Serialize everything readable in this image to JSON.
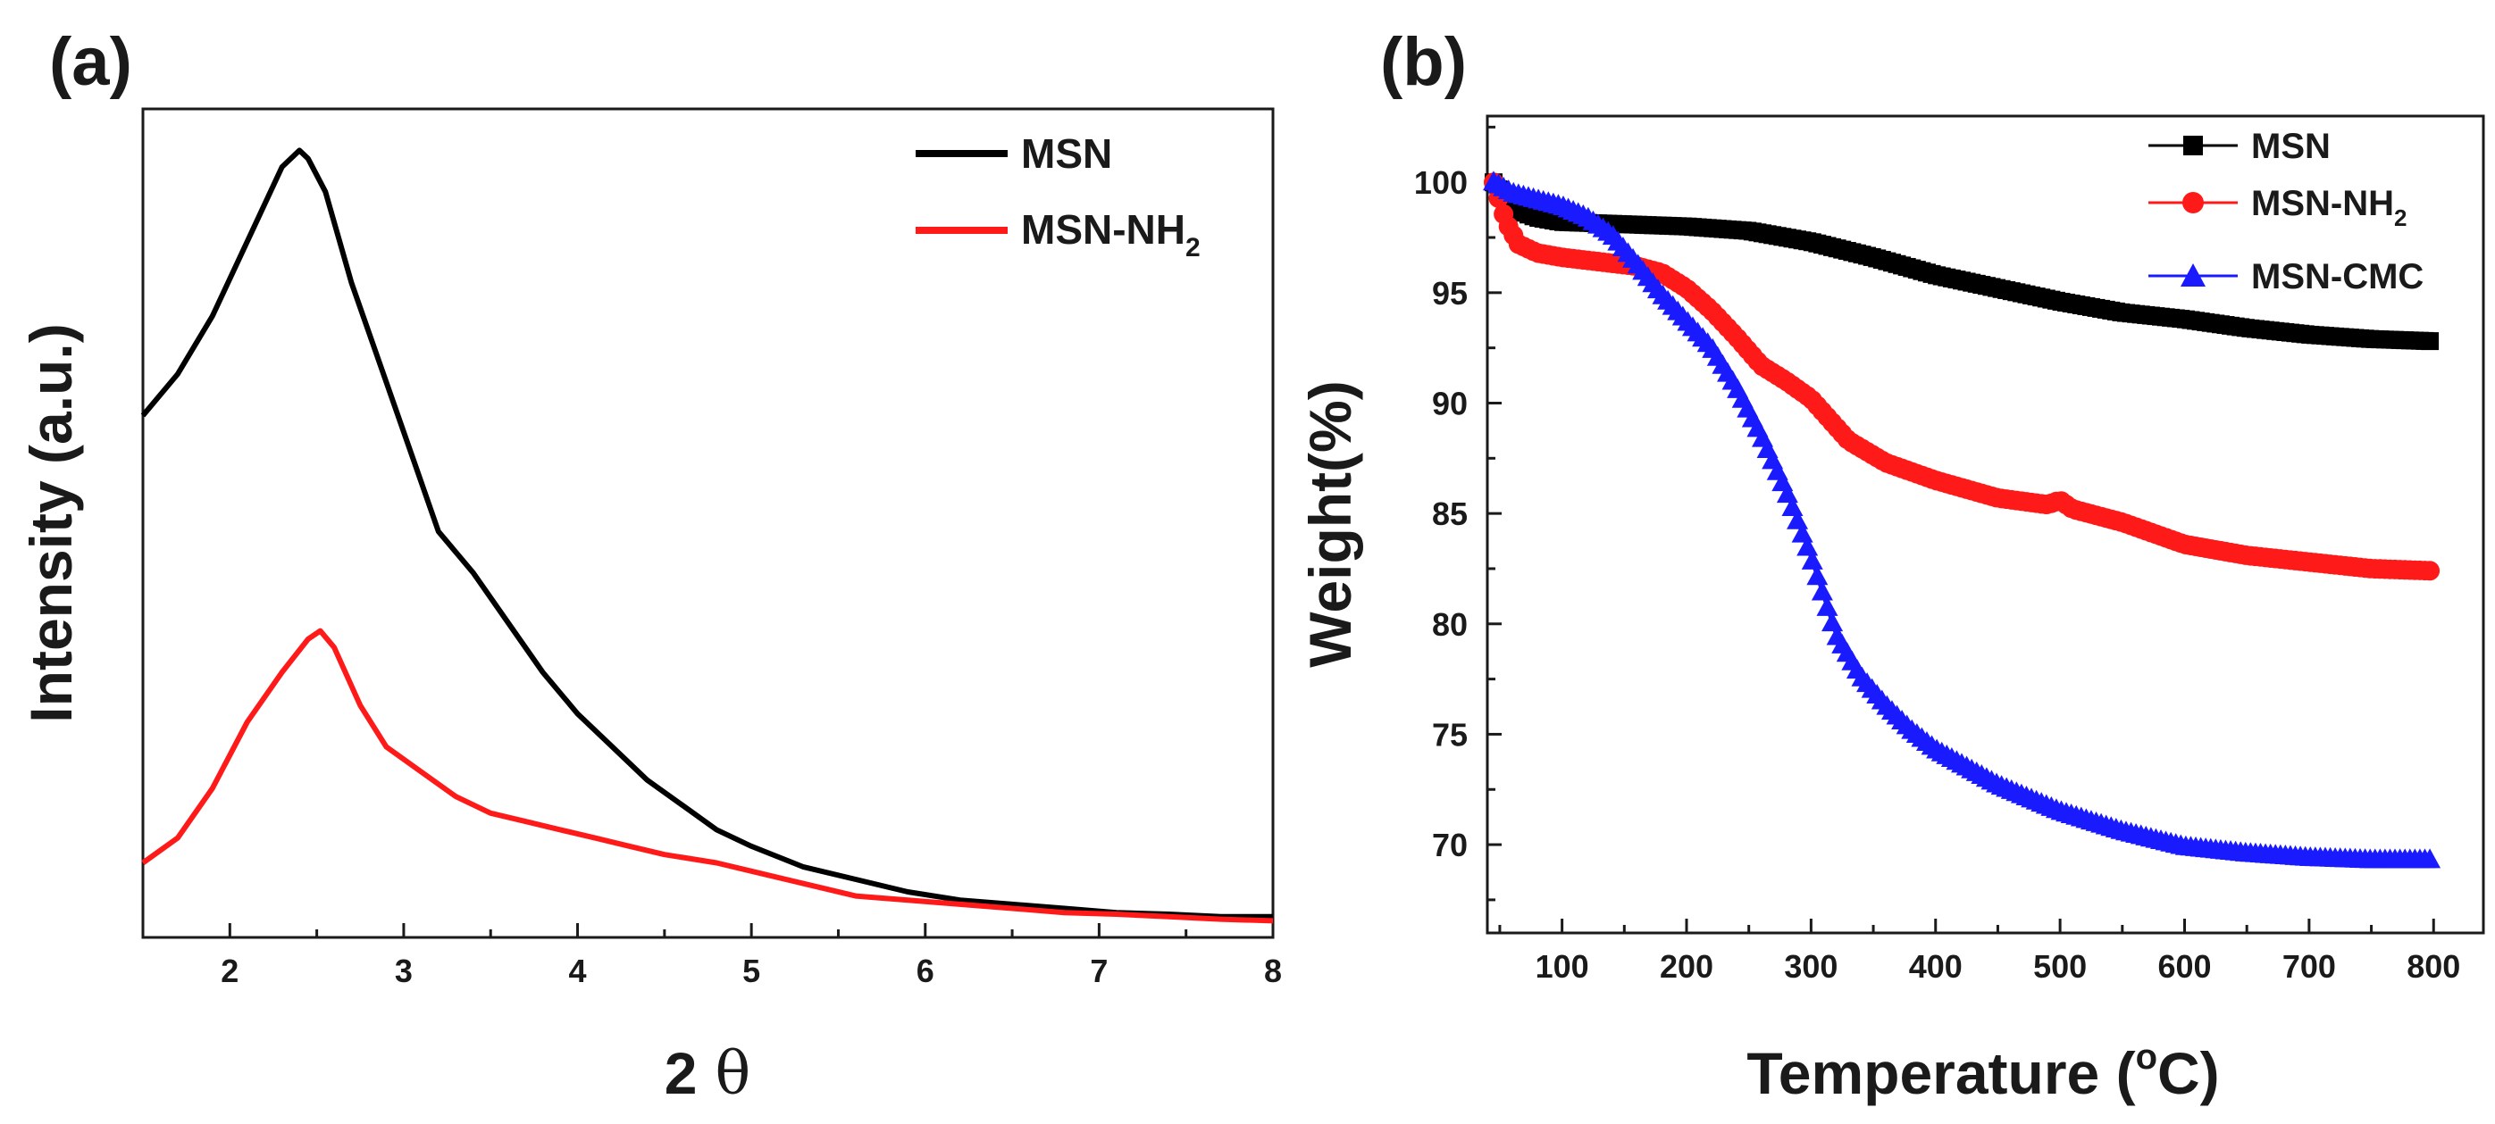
{
  "chart_data": [
    {
      "panel": "(a)",
      "type": "line",
      "xlabel": "2",
      "xlabel_symbol": "θ",
      "ylabel": "Intensity (a.u.)",
      "xlim": [
        1.5,
        8
      ],
      "ylim": [
        0,
        100
      ],
      "xticks": [
        "2",
        "3",
        "4",
        "5",
        "6",
        "7",
        "8"
      ],
      "legend_position": "top-right",
      "series": [
        {
          "name": "MSN",
          "name_sub": "",
          "color": "#000000",
          "x": [
            1.5,
            1.7,
            1.9,
            2.1,
            2.3,
            2.4,
            2.45,
            2.55,
            2.7,
            2.9,
            3.1,
            3.2,
            3.4,
            3.6,
            3.8,
            4.0,
            4.2,
            4.4,
            4.6,
            4.8,
            5.0,
            5.3,
            5.6,
            5.9,
            6.2,
            6.5,
            6.8,
            7.1,
            7.4,
            7.7,
            8.0
          ],
          "y": [
            63,
            68,
            75,
            84,
            93,
            95,
            94,
            90,
            79,
            67,
            55,
            49,
            44,
            38,
            32,
            27,
            23,
            19,
            16,
            13,
            11,
            8.5,
            7,
            5.5,
            4.5,
            4,
            3.5,
            3,
            2.8,
            2.5,
            2.5
          ]
        },
        {
          "name": "MSN-NH",
          "name_sub": "2",
          "color": "#ff1a1a",
          "x": [
            1.5,
            1.7,
            1.9,
            2.1,
            2.3,
            2.45,
            2.52,
            2.6,
            2.75,
            2.9,
            3.1,
            3.3,
            3.5,
            3.7,
            3.9,
            4.1,
            4.3,
            4.5,
            4.8,
            5.0,
            5.3,
            5.6,
            5.9,
            6.2,
            6.5,
            6.8,
            7.1,
            7.4,
            7.7,
            8.0
          ],
          "y": [
            9,
            12,
            18,
            26,
            32,
            36,
            37,
            35,
            28,
            23,
            20,
            17,
            15,
            14,
            13,
            12,
            11,
            10,
            9,
            8,
            6.5,
            5,
            4.5,
            4,
            3.5,
            3,
            2.8,
            2.5,
            2.2,
            2
          ]
        }
      ]
    },
    {
      "panel": "(b)",
      "type": "line",
      "xlabel": "Temperature (",
      "xlabel_unit_sup": "o",
      "xlabel_unit": "C)",
      "ylabel": "Weight(%)",
      "xlim": [
        40,
        840
      ],
      "ylim": [
        66,
        103
      ],
      "xticks": [
        100,
        200,
        300,
        400,
        500,
        600,
        700,
        800
      ],
      "yticks": [
        70,
        75,
        80,
        85,
        90,
        95,
        100
      ],
      "legend_position": "top-right",
      "series": [
        {
          "name": "MSN",
          "name_sub": "",
          "color": "#000000",
          "marker": "square",
          "x": [
            45,
            60,
            80,
            100,
            150,
            200,
            250,
            300,
            350,
            400,
            450,
            500,
            550,
            600,
            650,
            700,
            750,
            800
          ],
          "y": [
            100,
            98.8,
            98.4,
            98.2,
            98.1,
            98.0,
            97.8,
            97.3,
            96.6,
            95.8,
            95.2,
            94.6,
            94.1,
            93.8,
            93.4,
            93.1,
            92.9,
            92.8
          ]
        },
        {
          "name": "MSN-NH",
          "name_sub": "2",
          "color": "#ff1a1a",
          "marker": "circle",
          "x": [
            45,
            55,
            65,
            80,
            100,
            130,
            160,
            180,
            200,
            220,
            240,
            260,
            280,
            300,
            330,
            360,
            400,
            450,
            490,
            500,
            510,
            550,
            600,
            650,
            700,
            750,
            800
          ],
          "y": [
            100,
            98.2,
            97.2,
            96.8,
            96.6,
            96.4,
            96.2,
            95.9,
            95.2,
            94.2,
            93,
            91.7,
            91,
            90.2,
            88.3,
            87.3,
            86.5,
            85.7,
            85.4,
            85.6,
            85.2,
            84.6,
            83.6,
            83.1,
            82.8,
            82.5,
            82.4
          ]
        },
        {
          "name": "MSN-CMC",
          "name_sub": "",
          "color": "#1a1aff",
          "marker": "triangle",
          "x": [
            45,
            60,
            80,
            100,
            120,
            140,
            160,
            180,
            200,
            220,
            240,
            260,
            280,
            300,
            320,
            340,
            360,
            380,
            400,
            450,
            500,
            550,
            600,
            650,
            700,
            750,
            800
          ],
          "y": [
            100,
            99.5,
            99.2,
            98.9,
            98.4,
            97.6,
            96.3,
            94.9,
            93.7,
            92.5,
            90.7,
            88.5,
            86,
            83,
            79.5,
            77.6,
            76.3,
            75.2,
            74.3,
            72.7,
            71.5,
            70.6,
            69.9,
            69.6,
            69.4,
            69.3,
            69.3
          ]
        }
      ]
    }
  ]
}
